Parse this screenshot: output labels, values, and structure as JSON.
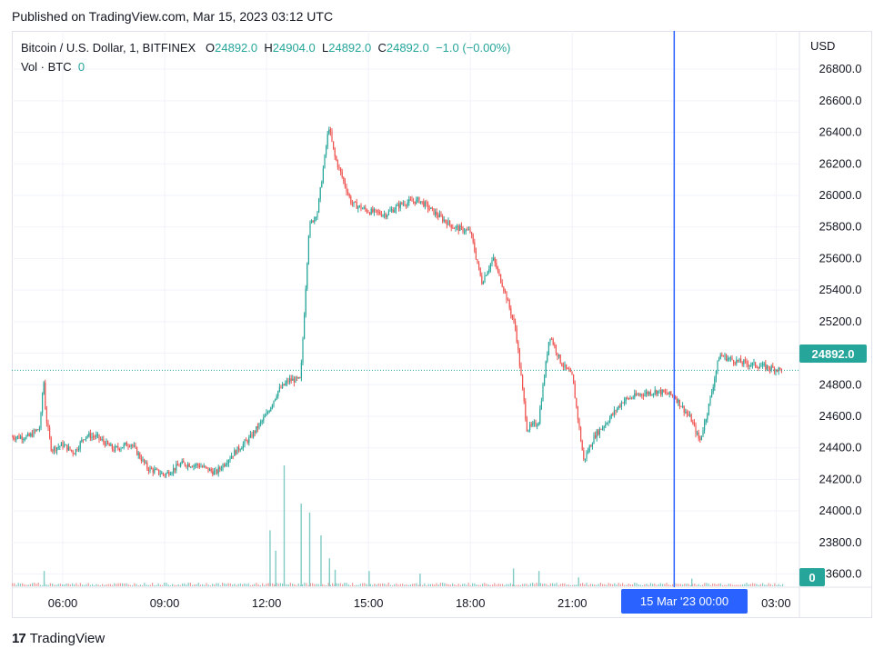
{
  "header": {
    "published": "Published on TradingView.com, Mar 15, 2023 03:12 UTC"
  },
  "legend": {
    "symbol": "Bitcoin / U.S. Dollar, 1, BITFINEX",
    "o_label": "O",
    "o": "24892.0",
    "h_label": "H",
    "h": "24904.0",
    "l_label": "L",
    "l": "24892.0",
    "c_label": "C",
    "c": "24892.0",
    "change": "−1.0 (−0.00%)",
    "vol_label": "Vol · BTC",
    "vol_value": "0"
  },
  "axis": {
    "currency": "USD"
  },
  "tags": {
    "last_price": "24892.0",
    "last_volume": "0",
    "crosshair_time": "15 Mar '23   00:00"
  },
  "footer": {
    "brand": "TradingView",
    "logo": "17"
  },
  "colors": {
    "up": "#26a69a",
    "down": "#ef5350",
    "crosshair": "#2962ff",
    "grid": "#f0f3fa"
  },
  "chart_data": {
    "type": "candlestick",
    "title": "Bitcoin / U.S. Dollar, 1, BITFINEX",
    "ylabel": "USD",
    "ylim": [
      23540,
      26870
    ],
    "y_ticks": [
      23600,
      23800,
      24000,
      24200,
      24400,
      24600,
      24800,
      25000,
      25200,
      25400,
      25600,
      25800,
      26000,
      26200,
      26400,
      26600,
      26800
    ],
    "x_range": [
      "2023-03-14 04:30",
      "2023-03-15 03:20"
    ],
    "x_ticks": [
      "06:00",
      "09:00",
      "12:00",
      "15:00",
      "18:00",
      "21:00",
      "00:00",
      "03:00"
    ],
    "last_price": 24892.0,
    "crosshair_x": "2023-03-15 00:00",
    "price_path": [
      {
        "t": "04:30",
        "p": 24470
      },
      {
        "t": "05:00",
        "p": 24470
      },
      {
        "t": "05:20",
        "p": 24530
      },
      {
        "t": "05:26",
        "p": 24850
      },
      {
        "t": "05:30",
        "p": 24600
      },
      {
        "t": "05:40",
        "p": 24390
      },
      {
        "t": "06:00",
        "p": 24420
      },
      {
        "t": "06:20",
        "p": 24370
      },
      {
        "t": "06:40",
        "p": 24480
      },
      {
        "t": "07:00",
        "p": 24470
      },
      {
        "t": "07:30",
        "p": 24390
      },
      {
        "t": "08:00",
        "p": 24430
      },
      {
        "t": "08:30",
        "p": 24270
      },
      {
        "t": "09:00",
        "p": 24230
      },
      {
        "t": "09:30",
        "p": 24300
      },
      {
        "t": "10:00",
        "p": 24290
      },
      {
        "t": "10:30",
        "p": 24240
      },
      {
        "t": "11:00",
        "p": 24360
      },
      {
        "t": "11:30",
        "p": 24460
      },
      {
        "t": "12:00",
        "p": 24610
      },
      {
        "t": "12:20",
        "p": 24760
      },
      {
        "t": "12:40",
        "p": 24830
      },
      {
        "t": "13:00",
        "p": 24830
      },
      {
        "t": "13:15",
        "p": 25800
      },
      {
        "t": "13:30",
        "p": 25900
      },
      {
        "t": "13:50",
        "p": 26440
      },
      {
        "t": "14:00",
        "p": 26250
      },
      {
        "t": "14:30",
        "p": 25950
      },
      {
        "t": "15:00",
        "p": 25900
      },
      {
        "t": "15:30",
        "p": 25880
      },
      {
        "t": "16:00",
        "p": 25950
      },
      {
        "t": "16:30",
        "p": 25970
      },
      {
        "t": "17:00",
        "p": 25880
      },
      {
        "t": "17:30",
        "p": 25800
      },
      {
        "t": "18:00",
        "p": 25770
      },
      {
        "t": "18:20",
        "p": 25450
      },
      {
        "t": "18:40",
        "p": 25600
      },
      {
        "t": "19:00",
        "p": 25400
      },
      {
        "t": "19:20",
        "p": 25150
      },
      {
        "t": "19:40",
        "p": 24520
      },
      {
        "t": "20:00",
        "p": 24560
      },
      {
        "t": "20:20",
        "p": 25120
      },
      {
        "t": "20:40",
        "p": 24940
      },
      {
        "t": "21:00",
        "p": 24850
      },
      {
        "t": "21:20",
        "p": 24320
      },
      {
        "t": "21:40",
        "p": 24480
      },
      {
        "t": "22:00",
        "p": 24560
      },
      {
        "t": "22:30",
        "p": 24700
      },
      {
        "t": "23:00",
        "p": 24740
      },
      {
        "t": "23:30",
        "p": 24760
      },
      {
        "t": "00:00",
        "p": 24730
      },
      {
        "t": "00:30",
        "p": 24580
      },
      {
        "t": "00:45",
        "p": 24440
      },
      {
        "t": "01:00",
        "p": 24650
      },
      {
        "t": "01:20",
        "p": 24990
      },
      {
        "t": "01:40",
        "p": 24960
      },
      {
        "t": "02:00",
        "p": 24940
      },
      {
        "t": "02:30",
        "p": 24920
      },
      {
        "t": "03:00",
        "p": 24900
      },
      {
        "t": "03:12",
        "p": 24892
      }
    ],
    "volume_spikes": [
      {
        "t": "05:26",
        "v": 0.12
      },
      {
        "t": "12:05",
        "v": 0.44
      },
      {
        "t": "12:15",
        "v": 0.28
      },
      {
        "t": "12:30",
        "v": 0.95
      },
      {
        "t": "13:00",
        "v": 0.65
      },
      {
        "t": "13:15",
        "v": 0.58
      },
      {
        "t": "13:35",
        "v": 0.4
      },
      {
        "t": "13:50",
        "v": 0.22
      },
      {
        "t": "14:00",
        "v": 0.13
      },
      {
        "t": "15:00",
        "v": 0.12
      },
      {
        "t": "16:30",
        "v": 0.1
      },
      {
        "t": "19:15",
        "v": 0.14
      },
      {
        "t": "20:00",
        "v": 0.12
      },
      {
        "t": "21:10",
        "v": 0.07
      },
      {
        "t": "00:30",
        "v": 0.06
      }
    ]
  }
}
